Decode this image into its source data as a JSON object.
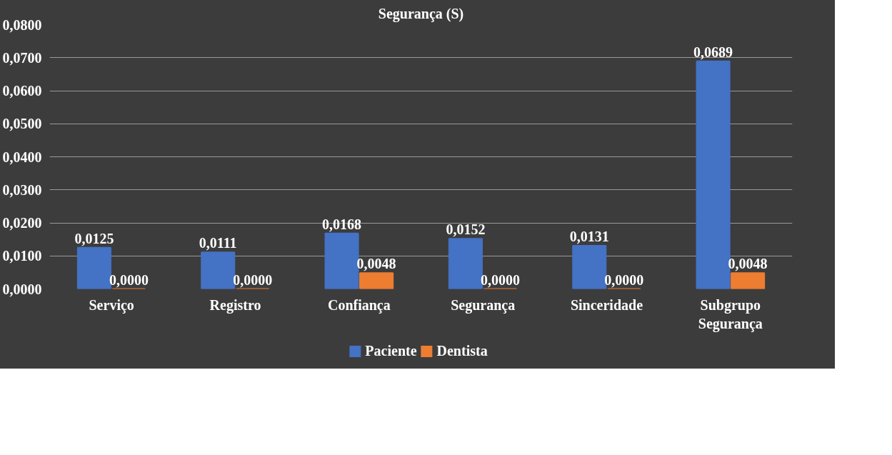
{
  "chart_data": {
    "type": "bar",
    "title": "Segurança (S)",
    "categories": [
      "Serviço",
      "Registro",
      "Confiança",
      "Segurança",
      "Sinceridade",
      "Subgrupo\nSegurança"
    ],
    "series": [
      {
        "name": "Paciente",
        "color": "#4472c4",
        "values": [
          0.0125,
          0.0111,
          0.0168,
          0.0152,
          0.0131,
          0.0689
        ],
        "value_labels": [
          "0,0125",
          "0,0111",
          "0,0168",
          "0,0152",
          "0,0131",
          "0,0689"
        ]
      },
      {
        "name": "Dentista",
        "color": "#ed7d31",
        "values": [
          0.0,
          0.0,
          0.0048,
          0.0,
          0.0,
          0.0048
        ],
        "value_labels": [
          "0,0000",
          "0,0000",
          "0,0048",
          "0,0000",
          "0,0000",
          "0,0048"
        ]
      }
    ],
    "ylim": [
      0,
      0.08
    ],
    "yticks": [
      {
        "value": 0,
        "label": "0,0000"
      },
      {
        "value": 0.01,
        "label": "0,0100"
      },
      {
        "value": 0.02,
        "label": "0,0200"
      },
      {
        "value": 0.03,
        "label": "0,0300"
      },
      {
        "value": 0.04,
        "label": "0,0400"
      },
      {
        "value": 0.05,
        "label": "0,0500"
      },
      {
        "value": 0.06,
        "label": "0,0600"
      },
      {
        "value": 0.07,
        "label": "0,0700"
      },
      {
        "value": 0.08,
        "label": "0,0800"
      }
    ],
    "grid": "y",
    "legend": "bottom"
  }
}
